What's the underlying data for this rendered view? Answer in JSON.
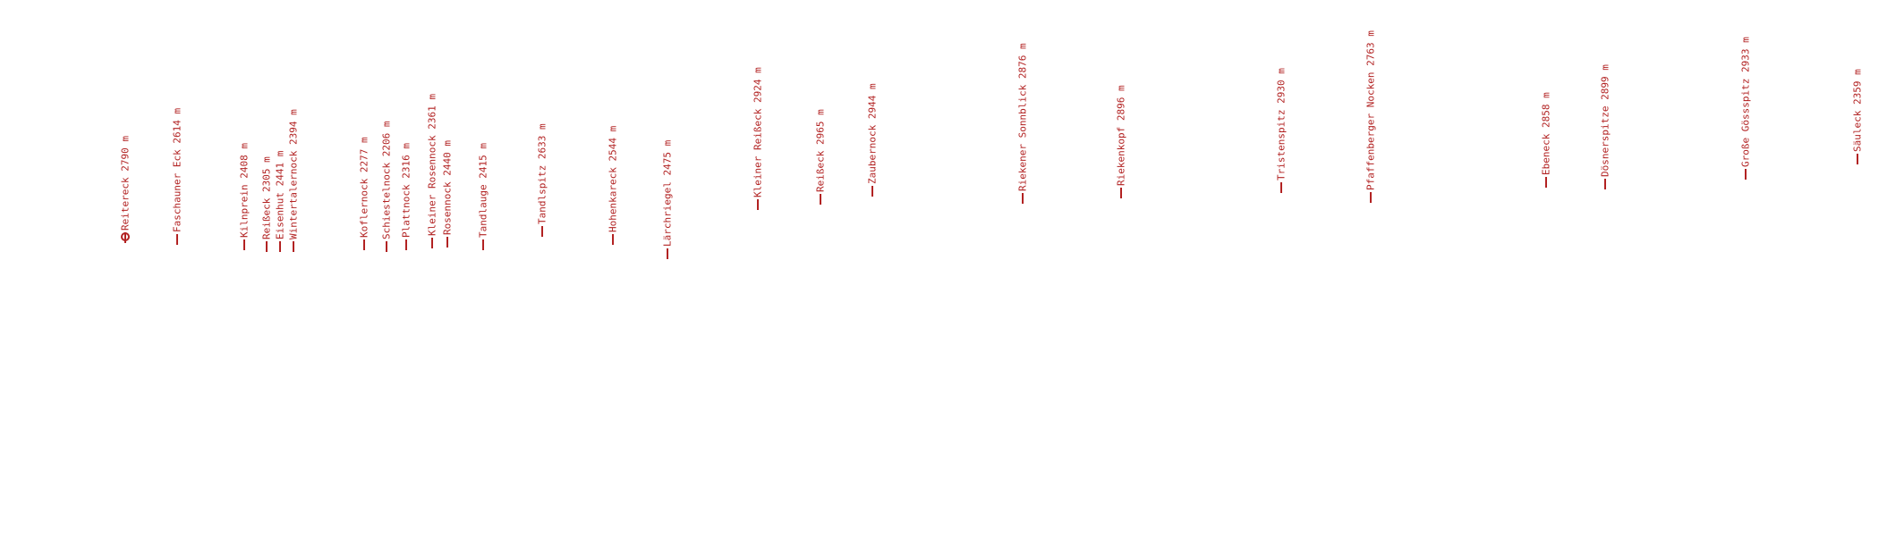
{
  "colors": {
    "label": "#b22222",
    "background": "#ffffff"
  },
  "peaks": [
    {
      "name": "Reitereck",
      "elevation": "2790 m",
      "main": true
    },
    {
      "name": "Faschauner Eck",
      "elevation": "2614 m"
    },
    {
      "name": "Kilnprein",
      "elevation": "2408 m"
    },
    {
      "name": "Reißeck",
      "elevation": "2305 m"
    },
    {
      "name": "Eisenhut",
      "elevation": "2441 m"
    },
    {
      "name": "Wintertalernock",
      "elevation": "2394 m"
    },
    {
      "name": "Koflernock",
      "elevation": "2277 m"
    },
    {
      "name": "Schiestelnock",
      "elevation": "2206 m"
    },
    {
      "name": "Plattnock",
      "elevation": "2316 m"
    },
    {
      "name": "Kleiner Rosennock",
      "elevation": "2361 m"
    },
    {
      "name": "Rosennock",
      "elevation": "2440 m"
    },
    {
      "name": "Tandlauge",
      "elevation": "2415 m"
    },
    {
      "name": "Tandlspitz",
      "elevation": "2633 m"
    },
    {
      "name": "Hohenkareck",
      "elevation": "2544 m"
    },
    {
      "name": "Lärchriegel",
      "elevation": "2475 m"
    },
    {
      "name": "Kleiner Reißeck",
      "elevation": "2924 m"
    },
    {
      "name": "Reißeck",
      "elevation": "2965 m"
    },
    {
      "name": "Zaubernock",
      "elevation": "2944 m"
    },
    {
      "name": "Riekener Sonnblick",
      "elevation": "2876 m"
    },
    {
      "name": "Riekenkopf",
      "elevation": "2896 m"
    },
    {
      "name": "Tristenspitz",
      "elevation": "2930 m"
    },
    {
      "name": "Pfaffenberger Nocken",
      "elevation": "2763 m"
    },
    {
      "name": "Ebeneck",
      "elevation": "2858 m"
    },
    {
      "name": "Dösnerspitze",
      "elevation": "2899 m"
    },
    {
      "name": "Große Gössspitz",
      "elevation": "2933 m"
    },
    {
      "name": "Säuleck",
      "elevation": "2359 m"
    }
  ]
}
